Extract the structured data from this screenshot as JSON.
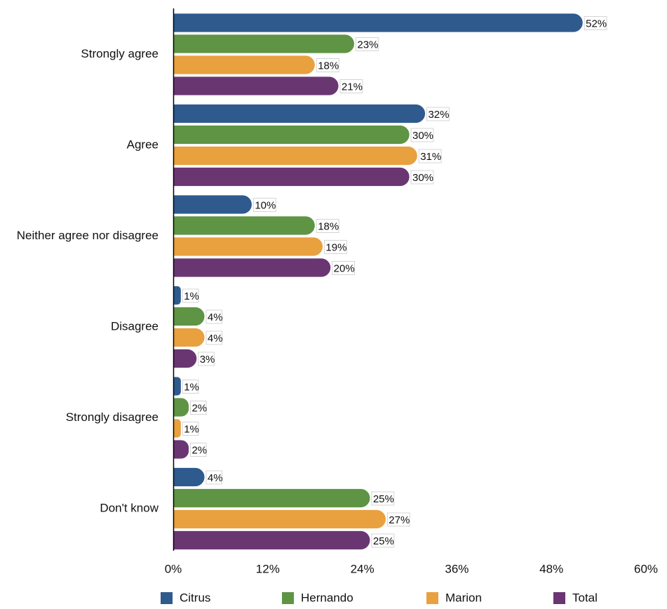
{
  "chart_data": {
    "type": "bar",
    "orientation": "horizontal",
    "title": "",
    "xlabel": "",
    "ylabel": "",
    "xlim": [
      0,
      60
    ],
    "x_ticks": [
      "0%",
      "12%",
      "24%",
      "36%",
      "48%",
      "60%"
    ],
    "x_tick_values": [
      0,
      12,
      24,
      36,
      48,
      60
    ],
    "grid": false,
    "legend_position": "bottom",
    "categories": [
      "Strongly agree",
      "Agree",
      "Neither agree nor disagree",
      "Disagree",
      "Strongly disagree",
      "Don't know"
    ],
    "series": [
      {
        "name": "Citrus",
        "color": "#2e5a8e",
        "values": [
          52,
          32,
          10,
          1,
          1,
          4
        ]
      },
      {
        "name": "Hernando",
        "color": "#5e9444",
        "values": [
          23,
          30,
          18,
          4,
          2,
          25
        ]
      },
      {
        "name": "Marion",
        "color": "#e9a03f",
        "values": [
          18,
          31,
          19,
          4,
          1,
          27
        ]
      },
      {
        "name": "Total",
        "color": "#6a3672",
        "values": [
          21,
          30,
          20,
          3,
          2,
          25
        ]
      }
    ],
    "value_labels": [
      [
        "52%",
        "23%",
        "18%",
        "21%"
      ],
      [
        "32%",
        "30%",
        "31%",
        "30%"
      ],
      [
        "10%",
        "18%",
        "19%",
        "20%"
      ],
      [
        "1%",
        "4%",
        "4%",
        "3%"
      ],
      [
        "1%",
        "2%",
        "1%",
        "2%"
      ],
      [
        "4%",
        "25%",
        "27%",
        "25%"
      ]
    ]
  }
}
